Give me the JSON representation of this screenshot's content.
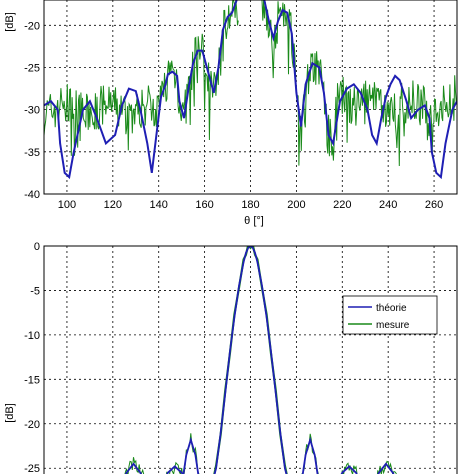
{
  "chart_data": [
    {
      "type": "line",
      "title": "",
      "xlabel": "θ [°]",
      "ylabel": "[dB]",
      "xlim": [
        90,
        270
      ],
      "ylim": [
        -40,
        -17
      ],
      "grid": true,
      "xticks": [
        100,
        120,
        140,
        160,
        180,
        200,
        220,
        240,
        260
      ],
      "yticks": [
        -20,
        -25,
        -30,
        -35,
        -40
      ],
      "series": [
        {
          "color": "#1f1fb4",
          "x": [
            90,
            93,
            96,
            97,
            99,
            101,
            103,
            107,
            110,
            113,
            117,
            121,
            124,
            127,
            130,
            132,
            135,
            137,
            139,
            141,
            143,
            144,
            146,
            148,
            149,
            151,
            153,
            155,
            157,
            159,
            161,
            164,
            166,
            168,
            170,
            172,
            174
          ],
          "values": [
            -29.5,
            -29,
            -30,
            -34,
            -37.5,
            -38,
            -35,
            -30,
            -29,
            -31,
            -34,
            -33,
            -29.5,
            -27.5,
            -27.8,
            -30,
            -34,
            -37.5,
            -33,
            -28.5,
            -27,
            -25.8,
            -25.5,
            -26,
            -29,
            -31,
            -27.5,
            -24.5,
            -23,
            -23,
            -25,
            -28,
            -25,
            -20.5,
            -19,
            -18.5,
            -17
          ],
          "x2": [
            186,
            188,
            190,
            192,
            194,
            196,
            198,
            200,
            202,
            204,
            207,
            210,
            212,
            214,
            216,
            219,
            222,
            225,
            228,
            231,
            233,
            235,
            237,
            239,
            241,
            243,
            245,
            248,
            250,
            253,
            256,
            258,
            259,
            261,
            263,
            265,
            268,
            270
          ],
          "values2": [
            -17,
            -19.5,
            -21.5,
            -19.5,
            -18.2,
            -18.5,
            -21,
            -28,
            -32,
            -27,
            -24.5,
            -25,
            -28,
            -33,
            -34,
            -29,
            -27.5,
            -27,
            -28,
            -30,
            -33,
            -34,
            -31,
            -28.5,
            -27,
            -26,
            -26.5,
            -29,
            -31,
            -30,
            -29.5,
            -31,
            -35,
            -37.5,
            -38,
            -34,
            -30,
            -29
          ]
        },
        {
          "color": "#1a8a1a"
        }
      ]
    },
    {
      "type": "line",
      "title": "",
      "xlabel": "",
      "ylabel": "[dB]",
      "xlim": [
        90,
        270
      ],
      "ylim": [
        -27,
        0
      ],
      "grid": true,
      "yticks": [
        0,
        -5,
        -10,
        -15,
        -20,
        -25
      ],
      "series": [
        {
          "name": "théorie",
          "color": "#1f1fb4",
          "x": [
            163,
            165,
            167,
            169,
            171,
            173,
            175,
            177,
            178,
            179,
            180,
            181,
            182,
            183,
            185,
            187,
            189,
            191,
            193,
            195,
            197
          ],
          "values": [
            -27,
            -25,
            -21,
            -16.5,
            -12,
            -8,
            -4.5,
            -1.8,
            -0.8,
            -0.2,
            0,
            -0.2,
            -0.8,
            -1.8,
            -4.5,
            -8,
            -12,
            -16.5,
            -21,
            -25,
            -27
          ],
          "lobes": [
            {
              "x": [
                123,
                126,
                129,
                132,
                135
              ],
              "values": [
                -27,
                -25.5,
                -24.5,
                -25.5,
                -27
              ]
            },
            {
              "x": [
                141,
                144,
                147,
                150,
                153
              ],
              "values": [
                -27,
                -25.5,
                -24.8,
                -25.5,
                -27
              ]
            },
            {
              "x": [
                150,
                152,
                154,
                156,
                158
              ],
              "values": [
                -27,
                -23.5,
                -21.8,
                -23.5,
                -27
              ]
            },
            {
              "x": [
                202,
                204,
                206,
                208,
                210
              ],
              "values": [
                -27,
                -23.5,
                -21.8,
                -23.5,
                -27
              ]
            },
            {
              "x": [
                217,
                220,
                223,
                226,
                229
              ],
              "values": [
                -27,
                -25.5,
                -24.8,
                -25.5,
                -27
              ]
            },
            {
              "x": [
                233,
                236,
                239,
                242,
                245
              ],
              "values": [
                -27,
                -25.5,
                -24.5,
                -25.5,
                -27
              ]
            }
          ]
        },
        {
          "name": "mesure",
          "color": "#1a8a1a"
        }
      ]
    }
  ]
}
